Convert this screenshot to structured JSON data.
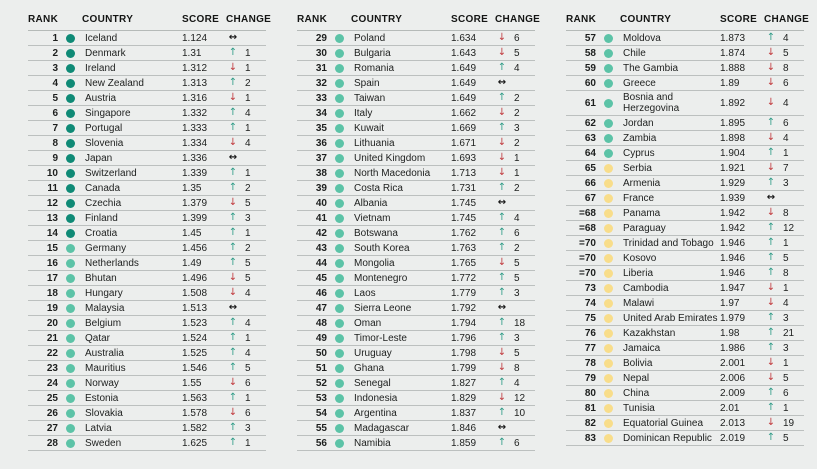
{
  "headers": {
    "rank": "RANK",
    "country": "COUNTRY",
    "score": "SCORE",
    "change": "CHANGE"
  },
  "icons": {
    "up": "↑",
    "down": "↓",
    "same": "↔"
  },
  "colors": {
    "band_very_high": "#0f8a76",
    "band_high": "#5cc3a7",
    "band_medium": "#f8dd8a",
    "up_arrow": "#2f9c87",
    "down_arrow": "#c13a3d",
    "same_arrow": "#1a1a1a"
  },
  "tables": [
    {
      "rows": [
        {
          "rank": "1",
          "country": "Iceland",
          "score": "1.124",
          "band": "very_high",
          "change_dir": "same",
          "change_value": ""
        },
        {
          "rank": "2",
          "country": "Denmark",
          "score": "1.31",
          "band": "very_high",
          "change_dir": "up",
          "change_value": "1"
        },
        {
          "rank": "3",
          "country": "Ireland",
          "score": "1.312",
          "band": "very_high",
          "change_dir": "down",
          "change_value": "1"
        },
        {
          "rank": "4",
          "country": "New Zealand",
          "score": "1.313",
          "band": "very_high",
          "change_dir": "up",
          "change_value": "2"
        },
        {
          "rank": "5",
          "country": "Austria",
          "score": "1.316",
          "band": "very_high",
          "change_dir": "down",
          "change_value": "1"
        },
        {
          "rank": "6",
          "country": "Singapore",
          "score": "1.332",
          "band": "very_high",
          "change_dir": "up",
          "change_value": "4"
        },
        {
          "rank": "7",
          "country": "Portugal",
          "score": "1.333",
          "band": "very_high",
          "change_dir": "up",
          "change_value": "1"
        },
        {
          "rank": "8",
          "country": "Slovenia",
          "score": "1.334",
          "band": "very_high",
          "change_dir": "down",
          "change_value": "4"
        },
        {
          "rank": "9",
          "country": "Japan",
          "score": "1.336",
          "band": "very_high",
          "change_dir": "same",
          "change_value": ""
        },
        {
          "rank": "10",
          "country": "Switzerland",
          "score": "1.339",
          "band": "very_high",
          "change_dir": "up",
          "change_value": "1"
        },
        {
          "rank": "11",
          "country": "Canada",
          "score": "1.35",
          "band": "very_high",
          "change_dir": "up",
          "change_value": "2"
        },
        {
          "rank": "12",
          "country": "Czechia",
          "score": "1.379",
          "band": "very_high",
          "change_dir": "down",
          "change_value": "5"
        },
        {
          "rank": "13",
          "country": "Finland",
          "score": "1.399",
          "band": "very_high",
          "change_dir": "up",
          "change_value": "3"
        },
        {
          "rank": "14",
          "country": "Croatia",
          "score": "1.45",
          "band": "very_high",
          "change_dir": "up",
          "change_value": "1"
        },
        {
          "rank": "15",
          "country": "Germany",
          "score": "1.456",
          "band": "high",
          "change_dir": "up",
          "change_value": "2"
        },
        {
          "rank": "16",
          "country": "Netherlands",
          "score": "1.49",
          "band": "high",
          "change_dir": "up",
          "change_value": "5"
        },
        {
          "rank": "17",
          "country": "Bhutan",
          "score": "1.496",
          "band": "high",
          "change_dir": "down",
          "change_value": "5"
        },
        {
          "rank": "18",
          "country": "Hungary",
          "score": "1.508",
          "band": "high",
          "change_dir": "down",
          "change_value": "4"
        },
        {
          "rank": "19",
          "country": "Malaysia",
          "score": "1.513",
          "band": "high",
          "change_dir": "same",
          "change_value": ""
        },
        {
          "rank": "20",
          "country": "Belgium",
          "score": "1.523",
          "band": "high",
          "change_dir": "up",
          "change_value": "4"
        },
        {
          "rank": "21",
          "country": "Qatar",
          "score": "1.524",
          "band": "high",
          "change_dir": "up",
          "change_value": "1"
        },
        {
          "rank": "22",
          "country": "Australia",
          "score": "1.525",
          "band": "high",
          "change_dir": "up",
          "change_value": "4"
        },
        {
          "rank": "23",
          "country": "Mauritius",
          "score": "1.546",
          "band": "high",
          "change_dir": "up",
          "change_value": "5"
        },
        {
          "rank": "24",
          "country": "Norway",
          "score": "1.55",
          "band": "high",
          "change_dir": "down",
          "change_value": "6"
        },
        {
          "rank": "25",
          "country": "Estonia",
          "score": "1.563",
          "band": "high",
          "change_dir": "up",
          "change_value": "1"
        },
        {
          "rank": "26",
          "country": "Slovakia",
          "score": "1.578",
          "band": "high",
          "change_dir": "down",
          "change_value": "6"
        },
        {
          "rank": "27",
          "country": "Latvia",
          "score": "1.582",
          "band": "high",
          "change_dir": "up",
          "change_value": "3"
        },
        {
          "rank": "28",
          "country": "Sweden",
          "score": "1.625",
          "band": "high",
          "change_dir": "up",
          "change_value": "1"
        }
      ]
    },
    {
      "rows": [
        {
          "rank": "29",
          "country": "Poland",
          "score": "1.634",
          "band": "high",
          "change_dir": "down",
          "change_value": "6"
        },
        {
          "rank": "30",
          "country": "Bulgaria",
          "score": "1.643",
          "band": "high",
          "change_dir": "down",
          "change_value": "5"
        },
        {
          "rank": "31",
          "country": "Romania",
          "score": "1.649",
          "band": "high",
          "change_dir": "up",
          "change_value": "4"
        },
        {
          "rank": "32",
          "country": "Spain",
          "score": "1.649",
          "band": "high",
          "change_dir": "same",
          "change_value": ""
        },
        {
          "rank": "33",
          "country": "Taiwan",
          "score": "1.649",
          "band": "high",
          "change_dir": "up",
          "change_value": "2"
        },
        {
          "rank": "34",
          "country": "Italy",
          "score": "1.662",
          "band": "high",
          "change_dir": "down",
          "change_value": "2"
        },
        {
          "rank": "35",
          "country": "Kuwait",
          "score": "1.669",
          "band": "high",
          "change_dir": "up",
          "change_value": "3"
        },
        {
          "rank": "36",
          "country": "Lithuania",
          "score": "1.671",
          "band": "high",
          "change_dir": "down",
          "change_value": "2"
        },
        {
          "rank": "37",
          "country": "United Kingdom",
          "score": "1.693",
          "band": "high",
          "change_dir": "down",
          "change_value": "1"
        },
        {
          "rank": "38",
          "country": "North Macedonia",
          "score": "1.713",
          "band": "high",
          "change_dir": "down",
          "change_value": "1"
        },
        {
          "rank": "39",
          "country": "Costa Rica",
          "score": "1.731",
          "band": "high",
          "change_dir": "up",
          "change_value": "2"
        },
        {
          "rank": "40",
          "country": "Albania",
          "score": "1.745",
          "band": "high",
          "change_dir": "same",
          "change_value": ""
        },
        {
          "rank": "41",
          "country": "Vietnam",
          "score": "1.745",
          "band": "high",
          "change_dir": "up",
          "change_value": "4"
        },
        {
          "rank": "42",
          "country": "Botswana",
          "score": "1.762",
          "band": "high",
          "change_dir": "up",
          "change_value": "6"
        },
        {
          "rank": "43",
          "country": "South Korea",
          "score": "1.763",
          "band": "high",
          "change_dir": "up",
          "change_value": "2"
        },
        {
          "rank": "44",
          "country": "Mongolia",
          "score": "1.765",
          "band": "high",
          "change_dir": "down",
          "change_value": "5"
        },
        {
          "rank": "45",
          "country": "Montenegro",
          "score": "1.772",
          "band": "high",
          "change_dir": "up",
          "change_value": "5"
        },
        {
          "rank": "46",
          "country": "Laos",
          "score": "1.779",
          "band": "high",
          "change_dir": "up",
          "change_value": "3"
        },
        {
          "rank": "47",
          "country": "Sierra Leone",
          "score": "1.792",
          "band": "high",
          "change_dir": "same",
          "change_value": ""
        },
        {
          "rank": "48",
          "country": "Oman",
          "score": "1.794",
          "band": "high",
          "change_dir": "up",
          "change_value": "18"
        },
        {
          "rank": "49",
          "country": "Timor-Leste",
          "score": "1.796",
          "band": "high",
          "change_dir": "up",
          "change_value": "3"
        },
        {
          "rank": "50",
          "country": "Uruguay",
          "score": "1.798",
          "band": "high",
          "change_dir": "down",
          "change_value": "5"
        },
        {
          "rank": "51",
          "country": "Ghana",
          "score": "1.799",
          "band": "high",
          "change_dir": "down",
          "change_value": "8"
        },
        {
          "rank": "52",
          "country": "Senegal",
          "score": "1.827",
          "band": "high",
          "change_dir": "up",
          "change_value": "4"
        },
        {
          "rank": "53",
          "country": "Indonesia",
          "score": "1.829",
          "band": "high",
          "change_dir": "down",
          "change_value": "12"
        },
        {
          "rank": "54",
          "country": "Argentina",
          "score": "1.837",
          "band": "high",
          "change_dir": "up",
          "change_value": "10"
        },
        {
          "rank": "55",
          "country": "Madagascar",
          "score": "1.846",
          "band": "high",
          "change_dir": "same",
          "change_value": ""
        },
        {
          "rank": "56",
          "country": "Namibia",
          "score": "1.859",
          "band": "high",
          "change_dir": "up",
          "change_value": "6"
        }
      ]
    },
    {
      "rows": [
        {
          "rank": "57",
          "country": "Moldova",
          "score": "1.873",
          "band": "high",
          "change_dir": "up",
          "change_value": "4"
        },
        {
          "rank": "58",
          "country": "Chile",
          "score": "1.874",
          "band": "high",
          "change_dir": "down",
          "change_value": "5"
        },
        {
          "rank": "59",
          "country": "The Gambia",
          "score": "1.888",
          "band": "high",
          "change_dir": "down",
          "change_value": "8"
        },
        {
          "rank": "60",
          "country": "Greece",
          "score": "1.89",
          "band": "high",
          "change_dir": "down",
          "change_value": "6"
        },
        {
          "rank": "61",
          "country": "Bosnia and Herzegovina",
          "score": "1.892",
          "band": "high",
          "change_dir": "down",
          "change_value": "4"
        },
        {
          "rank": "62",
          "country": "Jordan",
          "score": "1.895",
          "band": "high",
          "change_dir": "up",
          "change_value": "6"
        },
        {
          "rank": "63",
          "country": "Zambia",
          "score": "1.898",
          "band": "high",
          "change_dir": "down",
          "change_value": "4"
        },
        {
          "rank": "64",
          "country": "Cyprus",
          "score": "1.904",
          "band": "high",
          "change_dir": "up",
          "change_value": "1"
        },
        {
          "rank": "65",
          "country": "Serbia",
          "score": "1.921",
          "band": "medium",
          "change_dir": "down",
          "change_value": "7"
        },
        {
          "rank": "66",
          "country": "Armenia",
          "score": "1.929",
          "band": "medium",
          "change_dir": "up",
          "change_value": "3"
        },
        {
          "rank": "67",
          "country": "France",
          "score": "1.939",
          "band": "medium",
          "change_dir": "same",
          "change_value": ""
        },
        {
          "rank": "=68",
          "country": "Panama",
          "score": "1.942",
          "band": "medium",
          "change_dir": "down",
          "change_value": "8"
        },
        {
          "rank": "=68",
          "country": "Paraguay",
          "score": "1.942",
          "band": "medium",
          "change_dir": "up",
          "change_value": "12"
        },
        {
          "rank": "=70",
          "country": "Trinidad and Tobago",
          "score": "1.946",
          "band": "medium",
          "change_dir": "up",
          "change_value": "1"
        },
        {
          "rank": "=70",
          "country": "Kosovo",
          "score": "1.946",
          "band": "medium",
          "change_dir": "up",
          "change_value": "5"
        },
        {
          "rank": "=70",
          "country": "Liberia",
          "score": "1.946",
          "band": "medium",
          "change_dir": "up",
          "change_value": "8"
        },
        {
          "rank": "73",
          "country": "Cambodia",
          "score": "1.947",
          "band": "medium",
          "change_dir": "down",
          "change_value": "1"
        },
        {
          "rank": "74",
          "country": "Malawi",
          "score": "1.97",
          "band": "medium",
          "change_dir": "down",
          "change_value": "4"
        },
        {
          "rank": "75",
          "country": "United Arab Emirates",
          "score": "1.979",
          "band": "medium",
          "change_dir": "up",
          "change_value": "3"
        },
        {
          "rank": "76",
          "country": "Kazakhstan",
          "score": "1.98",
          "band": "medium",
          "change_dir": "up",
          "change_value": "21"
        },
        {
          "rank": "77",
          "country": "Jamaica",
          "score": "1.986",
          "band": "medium",
          "change_dir": "up",
          "change_value": "3"
        },
        {
          "rank": "78",
          "country": "Bolivia",
          "score": "2.001",
          "band": "medium",
          "change_dir": "down",
          "change_value": "1"
        },
        {
          "rank": "79",
          "country": "Nepal",
          "score": "2.006",
          "band": "medium",
          "change_dir": "down",
          "change_value": "5"
        },
        {
          "rank": "80",
          "country": "China",
          "score": "2.009",
          "band": "medium",
          "change_dir": "up",
          "change_value": "6"
        },
        {
          "rank": "81",
          "country": "Tunisia",
          "score": "2.01",
          "band": "medium",
          "change_dir": "up",
          "change_value": "1"
        },
        {
          "rank": "82",
          "country": "Equatorial Guinea",
          "score": "2.013",
          "band": "medium",
          "change_dir": "down",
          "change_value": "19"
        },
        {
          "rank": "83",
          "country": "Dominican Republic",
          "score": "2.019",
          "band": "medium",
          "change_dir": "up",
          "change_value": "5"
        }
      ]
    }
  ]
}
